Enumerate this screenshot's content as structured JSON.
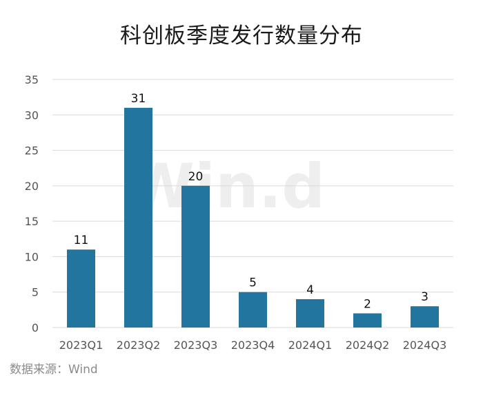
{
  "title": "科创板季度发行数量分布",
  "source": "数据来源：Wind",
  "watermark": "Win.d",
  "colors": {
    "bar": "#21759f",
    "grid": "#d9d9d9",
    "axis_text": "#555555",
    "label_text": "#111111",
    "watermark": "#eeeeee"
  },
  "chart_data": {
    "type": "bar",
    "title": "科创板季度发行数量分布",
    "categories": [
      "2023Q1",
      "2023Q2",
      "2023Q3",
      "2023Q4",
      "2024Q1",
      "2024Q2",
      "2024Q3"
    ],
    "values": [
      11,
      31,
      20,
      5,
      4,
      2,
      3
    ],
    "data_labels": [
      "11",
      "31",
      "20",
      "5",
      "4",
      "2",
      "3"
    ],
    "ylim": [
      0,
      35
    ],
    "yticks": [
      0,
      5,
      10,
      15,
      20,
      25,
      30,
      35
    ],
    "grid": true,
    "legend": "none"
  }
}
